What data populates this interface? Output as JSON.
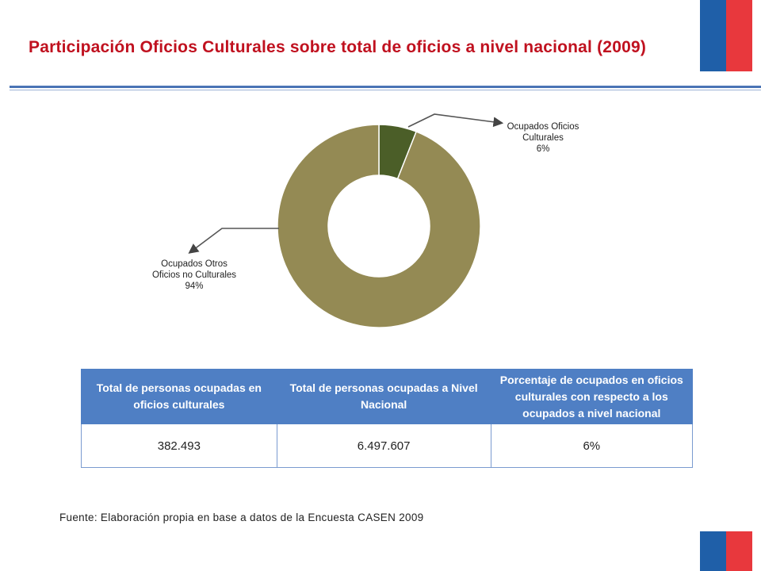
{
  "title": "Participación Oficios Culturales sobre total de oficios a nivel nacional (2009)",
  "colors": {
    "culturales": "#4b5e28",
    "otros": "#948a54",
    "table_header": "#4f7fc4"
  },
  "chart_data": {
    "type": "pie",
    "donut": true,
    "slices": [
      {
        "name_lines": [
          "Ocupados Oficios",
          "Culturales"
        ],
        "value_label": "6%",
        "value": 6
      },
      {
        "name_lines": [
          "Ocupados Otros",
          "Oficios no Culturales"
        ],
        "value_label": "94%",
        "value": 94
      }
    ]
  },
  "table": {
    "headers": [
      "Total de personas ocupadas en oficios culturales",
      "Total de personas ocupadas a Nivel Nacional",
      "Porcentaje de ocupados en oficios culturales con respecto a los ocupados a nivel nacional"
    ],
    "rows": [
      [
        "382.493",
        "6.497.607",
        "6%"
      ]
    ]
  },
  "source": "Fuente: Elaboración propia en base a datos de la Encuesta CASEN 2009"
}
